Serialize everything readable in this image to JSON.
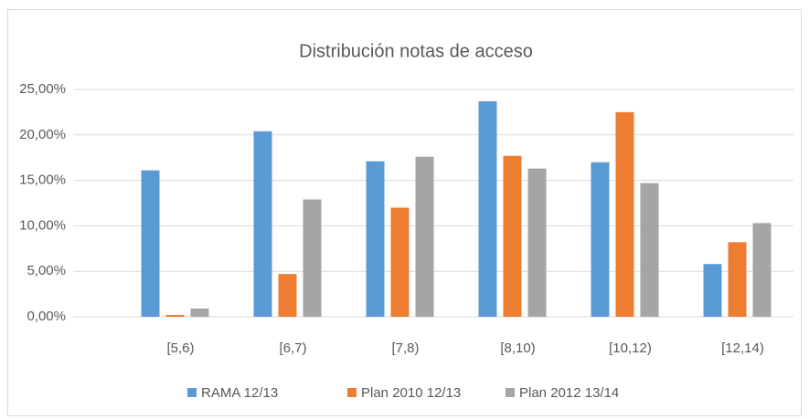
{
  "chart_data": {
    "type": "bar",
    "title": "Distribución notas de acceso",
    "categories": [
      "[5,6)",
      "[6,7)",
      "[7,8)",
      "[8,10)",
      "[10,12)",
      "[12,14)"
    ],
    "series": [
      {
        "name": "RAMA 12/13",
        "color": "#5b9bd5",
        "values": [
          16.1,
          20.4,
          17.1,
          23.7,
          17.0,
          5.8
        ]
      },
      {
        "name": "Plan 2010 12/13",
        "color": "#ed7d31",
        "values": [
          0.2,
          4.7,
          12.0,
          17.7,
          22.5,
          8.2
        ]
      },
      {
        "name": "Plan 2012 13/14",
        "color": "#a5a5a5",
        "values": [
          0.9,
          12.9,
          17.6,
          16.3,
          14.7,
          10.3
        ]
      }
    ],
    "ylim": [
      0,
      25
    ],
    "yticks": [
      {
        "value": 0,
        "label": "0,00%"
      },
      {
        "value": 5,
        "label": "5,00%"
      },
      {
        "value": 10,
        "label": "10,00%"
      },
      {
        "value": 15,
        "label": "15,00%"
      },
      {
        "value": 20,
        "label": "20,00%"
      },
      {
        "value": 25,
        "label": "25,00%"
      }
    ],
    "grid": true,
    "legend": "bottom"
  }
}
